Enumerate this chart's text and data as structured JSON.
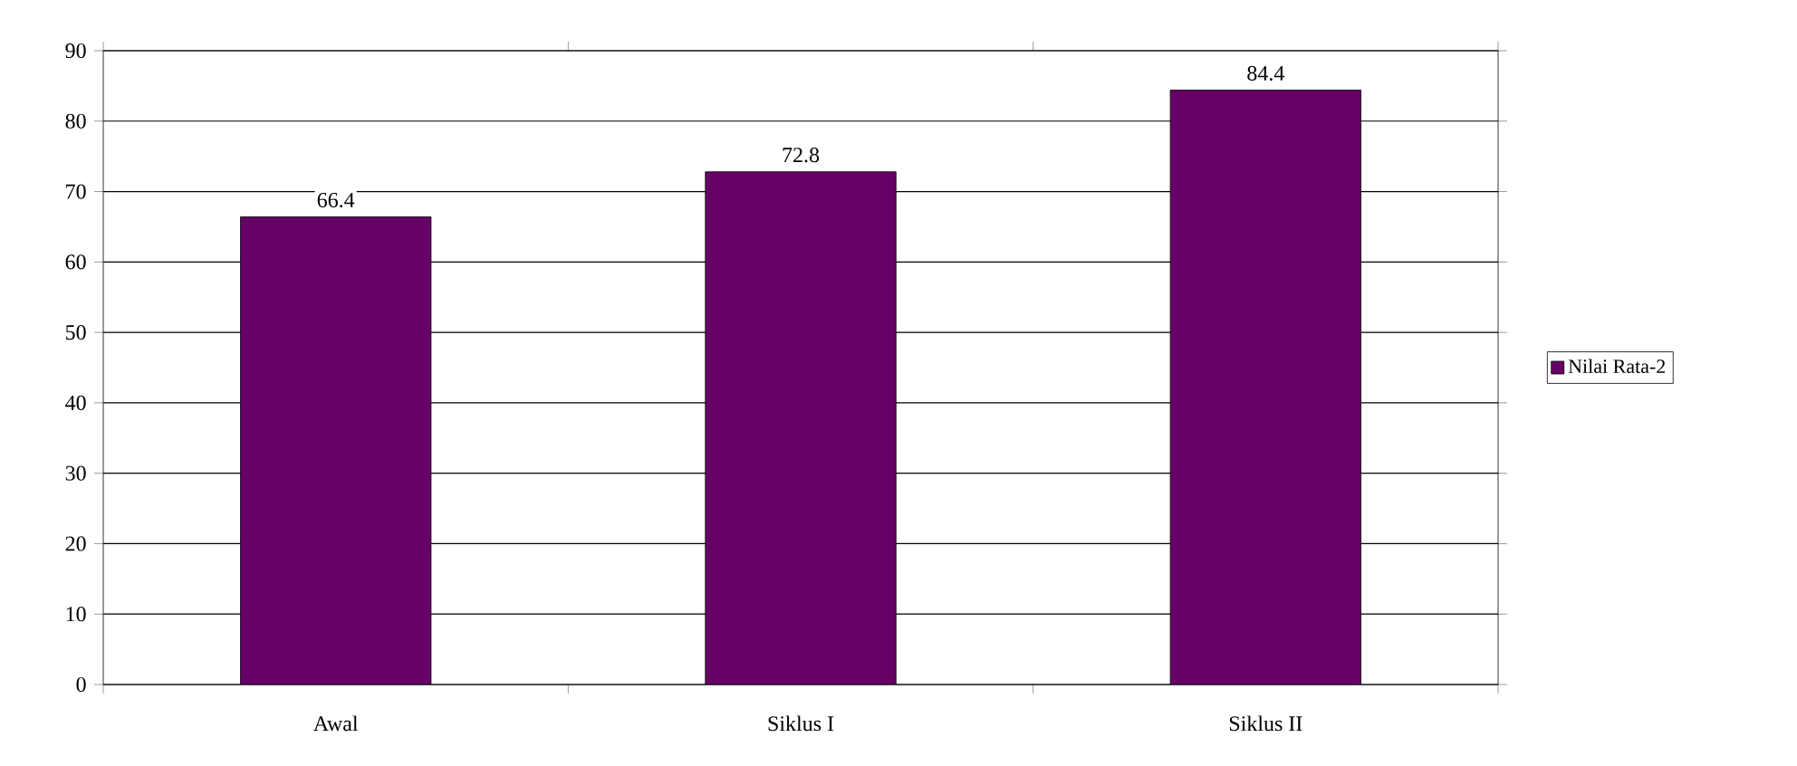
{
  "chart_data": {
    "type": "bar",
    "categories": [
      "Awal",
      "Siklus I",
      "Siklus II"
    ],
    "series": [
      {
        "name": "Nilai Rata-2",
        "color": "#660066",
        "values": [
          66.4,
          72.8,
          84.4
        ]
      }
    ],
    "ylim": [
      0,
      90
    ],
    "yticks": [
      0,
      10,
      20,
      30,
      40,
      50,
      60,
      70,
      80,
      90
    ],
    "grid": "y",
    "legend": "right",
    "data_labels": true
  }
}
